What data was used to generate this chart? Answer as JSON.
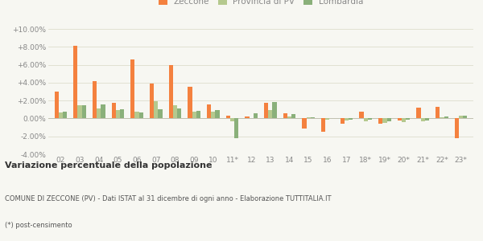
{
  "years": [
    "02",
    "03",
    "04",
    "05",
    "06",
    "07",
    "08",
    "09",
    "10",
    "11*",
    "12",
    "13",
    "14",
    "15",
    "16",
    "17",
    "18*",
    "19*",
    "20*",
    "21*",
    "22*",
    "23*"
  ],
  "zeccone": [
    3.0,
    8.1,
    4.2,
    1.7,
    6.6,
    3.9,
    5.95,
    3.5,
    1.55,
    0.3,
    0.25,
    1.7,
    0.55,
    -1.1,
    -1.5,
    -0.6,
    0.75,
    -0.6,
    -0.2,
    1.2,
    1.3,
    -2.2
  ],
  "provincia_pv": [
    0.7,
    1.5,
    1.1,
    0.9,
    0.8,
    1.9,
    1.5,
    0.8,
    0.75,
    -0.3,
    0.0,
    0.9,
    0.2,
    0.1,
    -0.15,
    -0.2,
    -0.3,
    -0.5,
    -0.4,
    -0.3,
    0.1,
    0.3
  ],
  "lombardia": [
    0.8,
    1.5,
    1.6,
    1.0,
    0.65,
    1.0,
    1.1,
    0.85,
    0.9,
    -2.2,
    0.6,
    1.8,
    0.5,
    0.15,
    0.0,
    -0.1,
    -0.1,
    -0.35,
    -0.15,
    -0.2,
    0.25,
    0.35
  ],
  "color_zeccone": "#f4813f",
  "color_provincia": "#b5c98e",
  "color_lombardia": "#8ab07a",
  "bg_color": "#f7f7f2",
  "title_bold": "Variazione percentuale della popolazione",
  "subtitle": "COMUNE DI ZECCONE (PV) - Dati ISTAT al 31 dicembre di ogni anno - Elaborazione TUTTITALIA.IT",
  "footnote": "(*) post-censimento",
  "ylim": [
    -4.0,
    10.0
  ],
  "yticks": [
    -4.0,
    -2.0,
    0.0,
    2.0,
    4.0,
    6.0,
    8.0,
    10.0
  ],
  "bar_width": 0.22
}
